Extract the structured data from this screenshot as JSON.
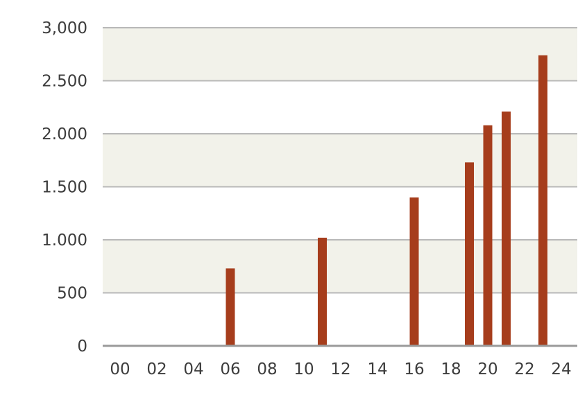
{
  "chart_data": {
    "type": "bar",
    "x": [
      6,
      11,
      16,
      19,
      20,
      21,
      23
    ],
    "values": [
      730,
      1020,
      1400,
      1730,
      2080,
      2210,
      2740
    ],
    "xlim": [
      0,
      24
    ],
    "ylim": [
      0,
      3000
    ],
    "x_ticks": [
      0,
      2,
      4,
      6,
      8,
      10,
      12,
      14,
      16,
      18,
      20,
      22,
      24
    ],
    "x_tick_labels": [
      "00",
      "02",
      "04",
      "06",
      "08",
      "10",
      "12",
      "14",
      "16",
      "18",
      "20",
      "22",
      "24"
    ],
    "y_ticks": [
      0,
      500,
      1000,
      1500,
      2000,
      2500,
      3000
    ],
    "y_tick_labels": [
      "0",
      "500",
      "1.000",
      "1.500",
      "2.000",
      "2.500",
      "3,000"
    ],
    "grid": true,
    "band_color": "#f2f2ea",
    "bar_color": "#a63d1c",
    "gridline_color": "#b8b8b8",
    "axis_color": "#9a9a9a"
  }
}
